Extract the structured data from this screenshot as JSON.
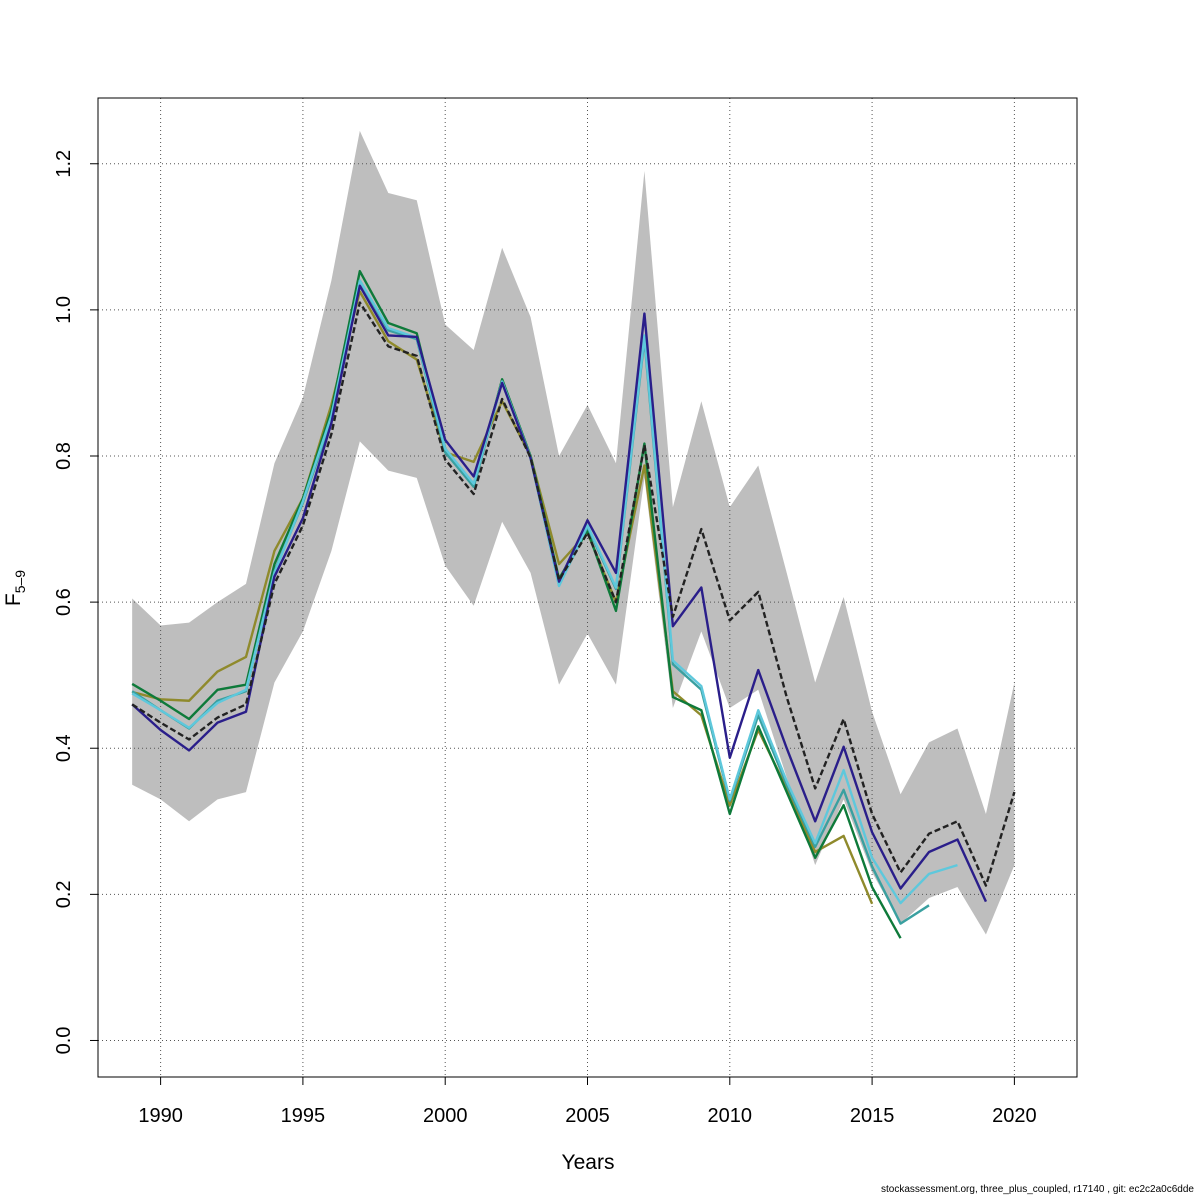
{
  "chart_data": {
    "type": "line",
    "xlabel": "Years",
    "ylabel_main": "F",
    "ylabel_sub": "5–9",
    "xlim": [
      1987.8,
      2022.2
    ],
    "ylim": [
      -0.05,
      1.29
    ],
    "x_ticks": [
      1990,
      1995,
      2000,
      2005,
      2010,
      2015,
      2020
    ],
    "y_ticks": [
      "0.0",
      "0.2",
      "0.4",
      "0.6",
      "0.8",
      "1.0",
      "1.2"
    ],
    "grid": true,
    "colors": {
      "band": "#bebebe",
      "base": "#222222",
      "navy": "#2a1e8a",
      "cyan": "#5ec8dc",
      "teal": "#3aa0a0",
      "green": "#0e7a3a",
      "olive": "#8f8a2c"
    },
    "band": {
      "x": [
        1989,
        1990,
        1991,
        1992,
        1993,
        1994,
        1995,
        1996,
        1997,
        1998,
        1999,
        2000,
        2001,
        2002,
        2003,
        2004,
        2005,
        2006,
        2007,
        2008,
        2009,
        2010,
        2011,
        2012,
        2013,
        2014,
        2015,
        2016,
        2017,
        2018,
        2019,
        2020
      ],
      "lower": [
        0.35,
        0.33,
        0.3,
        0.33,
        0.34,
        0.49,
        0.56,
        0.67,
        0.82,
        0.78,
        0.77,
        0.65,
        0.595,
        0.71,
        0.64,
        0.487,
        0.557,
        0.487,
        0.77,
        0.455,
        0.56,
        0.455,
        0.48,
        0.36,
        0.24,
        0.33,
        0.23,
        0.16,
        0.195,
        0.21,
        0.145,
        0.24
      ],
      "upper": [
        0.605,
        0.568,
        0.572,
        0.6,
        0.625,
        0.79,
        0.88,
        1.04,
        1.245,
        1.16,
        1.15,
        0.98,
        0.945,
        1.085,
        0.99,
        0.8,
        0.87,
        0.79,
        1.19,
        0.73,
        0.875,
        0.73,
        0.787,
        0.64,
        0.49,
        0.607,
        0.45,
        0.337,
        0.408,
        0.427,
        0.31,
        0.49
      ]
    },
    "series": [
      {
        "key": "base",
        "color_key": "base",
        "dashed": true,
        "x": [
          1989,
          1990,
          1991,
          1992,
          1993,
          1994,
          1995,
          1996,
          1997,
          1998,
          1999,
          2000,
          2001,
          2002,
          2003,
          2004,
          2005,
          2006,
          2007,
          2008,
          2009,
          2010,
          2011,
          2012,
          2013,
          2014,
          2015,
          2016,
          2017,
          2018,
          2019,
          2020
        ],
        "values": [
          0.46,
          0.435,
          0.412,
          0.442,
          0.46,
          0.625,
          0.705,
          0.83,
          1.01,
          0.95,
          0.937,
          0.795,
          0.748,
          0.878,
          0.798,
          0.63,
          0.695,
          0.6,
          0.815,
          0.58,
          0.7,
          0.575,
          0.614,
          0.47,
          0.345,
          0.44,
          0.31,
          0.23,
          0.283,
          0.3,
          0.212,
          0.34
        ]
      },
      {
        "key": "navy",
        "color_key": "navy",
        "dashed": false,
        "x": [
          1989,
          1990,
          1991,
          1992,
          1993,
          1994,
          1995,
          1996,
          1997,
          1998,
          1999,
          2000,
          2001,
          2002,
          2003,
          2004,
          2005,
          2006,
          2007,
          2008,
          2009,
          2010,
          2011,
          2012,
          2013,
          2014,
          2015,
          2016,
          2017,
          2018,
          2019
        ],
        "values": [
          0.46,
          0.425,
          0.397,
          0.435,
          0.45,
          0.635,
          0.715,
          0.845,
          1.033,
          0.965,
          0.963,
          0.822,
          0.772,
          0.9,
          0.797,
          0.628,
          0.712,
          0.64,
          0.995,
          0.567,
          0.62,
          0.387,
          0.507,
          0.4,
          0.3,
          0.402,
          0.285,
          0.208,
          0.258,
          0.275,
          0.19
        ]
      },
      {
        "key": "cyan",
        "color_key": "cyan",
        "dashed": false,
        "x": [
          1989,
          1990,
          1991,
          1992,
          1993,
          1994,
          1995,
          1996,
          1997,
          1998,
          1999,
          2000,
          2001,
          2002,
          2003,
          2004,
          2005,
          2006,
          2007,
          2008,
          2009,
          2010,
          2011,
          2012,
          2013,
          2014,
          2015,
          2016,
          2017,
          2018
        ],
        "values": [
          0.475,
          0.452,
          0.428,
          0.462,
          0.48,
          0.64,
          0.738,
          0.855,
          1.04,
          0.975,
          0.962,
          0.81,
          0.762,
          0.902,
          0.798,
          0.622,
          0.705,
          0.62,
          0.965,
          0.52,
          0.485,
          0.33,
          0.452,
          0.355,
          0.27,
          0.37,
          0.25,
          0.188,
          0.228,
          0.24
        ]
      },
      {
        "key": "teal",
        "color_key": "teal",
        "dashed": false,
        "x": [
          1989,
          1990,
          1991,
          1992,
          1993,
          1994,
          1995,
          1996,
          1997,
          1998,
          1999,
          2000,
          2001,
          2002,
          2003,
          2004,
          2005,
          2006,
          2007,
          2008,
          2009,
          2010,
          2011,
          2012,
          2013,
          2014,
          2015,
          2016,
          2017
        ],
        "values": [
          0.478,
          0.452,
          0.427,
          0.465,
          0.478,
          0.642,
          0.736,
          0.85,
          1.04,
          0.972,
          0.96,
          0.805,
          0.758,
          0.902,
          0.797,
          0.623,
          0.703,
          0.618,
          0.96,
          0.515,
          0.48,
          0.328,
          0.445,
          0.35,
          0.265,
          0.343,
          0.238,
          0.16,
          0.185
        ]
      },
      {
        "key": "green",
        "color_key": "green",
        "dashed": false,
        "x": [
          1989,
          1990,
          1991,
          1992,
          1993,
          1994,
          1995,
          1996,
          1997,
          1998,
          1999,
          2000,
          2001,
          2002,
          2003,
          2004,
          2005,
          2006,
          2007,
          2008,
          2009,
          2010,
          2011,
          2012,
          2013,
          2014,
          2015,
          2016
        ],
        "values": [
          0.488,
          0.465,
          0.44,
          0.48,
          0.487,
          0.652,
          0.742,
          0.862,
          1.053,
          0.982,
          0.968,
          0.81,
          0.758,
          0.905,
          0.8,
          0.632,
          0.698,
          0.588,
          0.817,
          0.47,
          0.452,
          0.31,
          0.43,
          0.34,
          0.25,
          0.322,
          0.21,
          0.14
        ]
      },
      {
        "key": "olive",
        "color_key": "olive",
        "dashed": false,
        "x": [
          1989,
          1990,
          1991,
          1992,
          1993,
          1994,
          1995,
          1996,
          1997,
          1998,
          1999,
          2000,
          2001,
          2002,
          2003,
          2004,
          2005,
          2006,
          2007,
          2008,
          2009,
          2010,
          2011,
          2012,
          2013,
          2014,
          2015
        ],
        "values": [
          0.477,
          0.467,
          0.465,
          0.505,
          0.525,
          0.67,
          0.742,
          0.87,
          1.025,
          0.957,
          0.932,
          0.805,
          0.792,
          0.875,
          0.8,
          0.652,
          0.695,
          0.6,
          0.787,
          0.478,
          0.445,
          0.322,
          0.425,
          0.345,
          0.258,
          0.28,
          0.187
        ]
      }
    ]
  },
  "footer_text": "stockassessment.org, three_plus_coupled, r17140 , git: ec2c2a0c6dde"
}
